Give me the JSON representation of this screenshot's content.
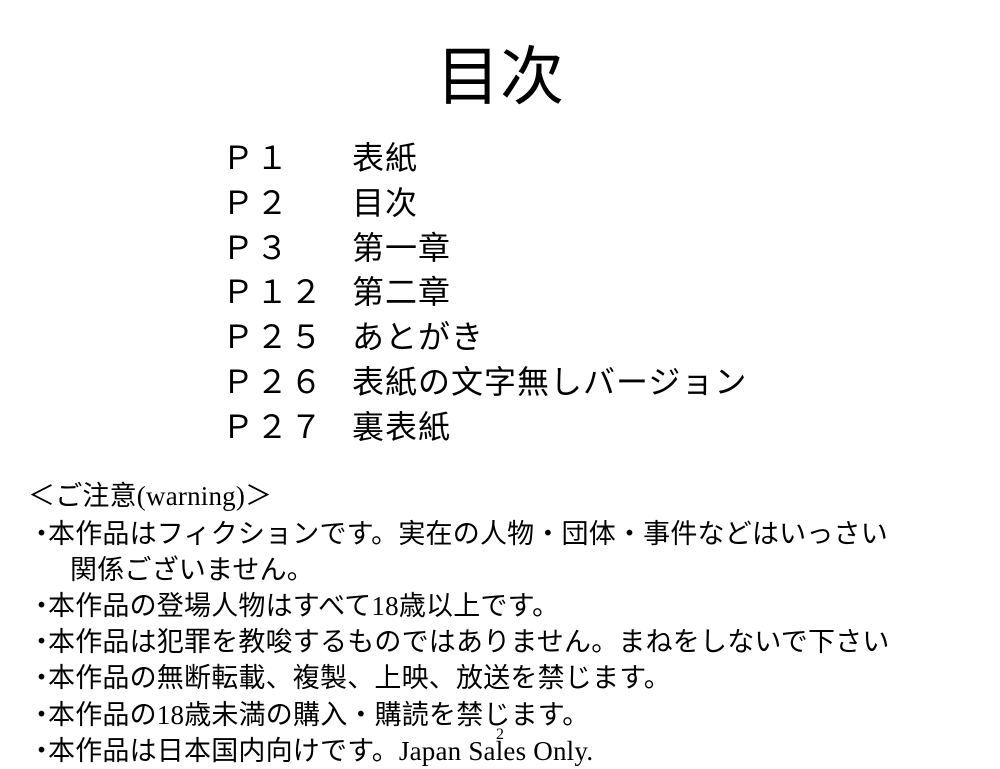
{
  "title": "目次",
  "toc": [
    {
      "page": "Ｐ１",
      "label": "表紙"
    },
    {
      "page": "Ｐ２",
      "label": "目次"
    },
    {
      "page": "Ｐ３",
      "label": "第一章"
    },
    {
      "page": "Ｐ１２",
      "label": "第二章"
    },
    {
      "page": "Ｐ２５",
      "label": "あとがき"
    },
    {
      "page": "Ｐ２６",
      "label": "表紙の文字無しバージョン"
    },
    {
      "page": "Ｐ２７",
      "label": "裏表紙"
    }
  ],
  "notice": {
    "heading": "＜ご注意(warning)＞",
    "bullet": "・",
    "items": [
      [
        "本作品はフィクションです。実在の人物・団体・事件などはいっさい",
        "関係ございません。"
      ],
      [
        "本作品の登場人物はすべて18歳以上です。"
      ],
      [
        "本作品は犯罪を教唆するものではありません。まねをしないで下さい"
      ],
      [
        "本作品の無断転載、複製、上映、放送を禁じます。"
      ],
      [
        "本作品の18歳未満の購入・購読を禁じます。"
      ],
      [
        "本作品は日本国内向けです。Japan Sales Only."
      ]
    ]
  },
  "page_number": "2"
}
